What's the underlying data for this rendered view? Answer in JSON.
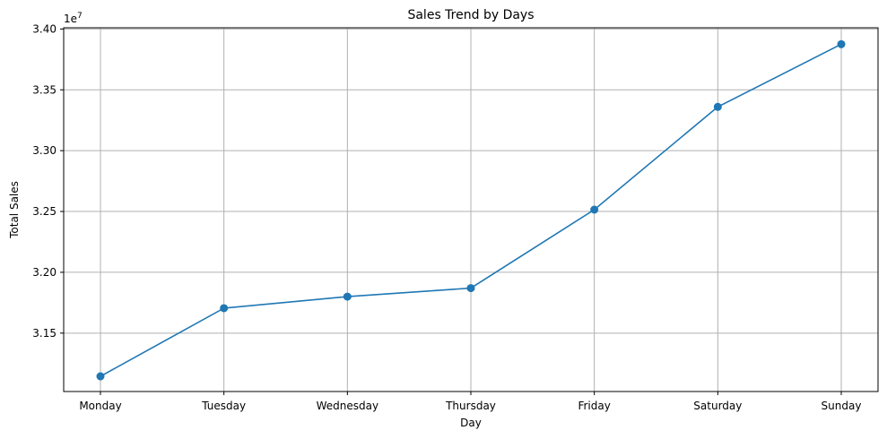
{
  "chart_data": {
    "type": "line",
    "title": "Sales Trend by Days",
    "xlabel": "Day",
    "ylabel": "Total Sales",
    "y_offset_label": "1e7",
    "categories": [
      "Monday",
      "Tuesday",
      "Wednesday",
      "Thursday",
      "Friday",
      "Saturday",
      "Sunday"
    ],
    "series": [
      {
        "values": [
          31145000,
          31705000,
          31800000,
          31870000,
          32515000,
          33360000,
          33875000
        ],
        "color": "#1f77b4"
      }
    ],
    "yticks": [
      3.15,
      3.2,
      3.25,
      3.3,
      3.35,
      3.4
    ],
    "ytick_labels": [
      "3.15",
      "3.20",
      "3.25",
      "3.30",
      "3.35",
      "3.40"
    ],
    "ylim": [
      31020000,
      34010000
    ],
    "grid": true,
    "marker": "circle"
  }
}
